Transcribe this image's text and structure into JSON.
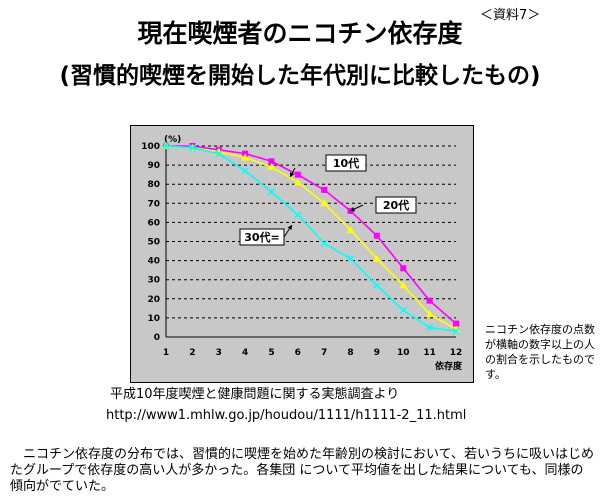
{
  "header": {
    "ref_label": "＜資料7＞",
    "title_line1": "現在喫煙者のニコチン依存度",
    "title_line2": "(習慣的喫煙を開始した年代別に比較したもの)"
  },
  "side_note": "ニコチン依存度の点数が横軸の数字以上の人の割合を示したものです。",
  "source": {
    "text": "平成10年度喫煙と健康問題に関する実態調査より",
    "url": "http://www1.mhlw.go.jp/houdou/1111/h1111-2_11.html"
  },
  "footer_text": "ニコチン依存度の分布では、習慣的に喫煙を始めた年齢別の検討において、若いうちに吸いはじめたグループで依存度の高い人が多かった。各集団 について平均値を出した結果についても、同様の傾向がでていた。",
  "chart_data": {
    "type": "line",
    "ylabel": "(%)",
    "xlabel": "依存度",
    "x": [
      1,
      2,
      3,
      4,
      5,
      6,
      7,
      8,
      9,
      10,
      11,
      12
    ],
    "ylim": [
      0,
      100
    ],
    "yticks": [
      0,
      10,
      20,
      30,
      40,
      50,
      60,
      70,
      80,
      90,
      100
    ],
    "grid": true,
    "series": [
      {
        "name": "10代",
        "color": "#ff00ff",
        "marker": "square",
        "values": [
          100,
          100,
          98,
          96,
          92,
          85,
          77,
          66,
          53,
          36,
          19,
          7
        ]
      },
      {
        "name": "20代",
        "color": "#ffff00",
        "marker": "triangle",
        "values": [
          100,
          99,
          97,
          94,
          89,
          81,
          70,
          56,
          41,
          27,
          12,
          4
        ]
      },
      {
        "name": "30代",
        "color": "#00ffff",
        "marker": "cross",
        "values": [
          100,
          99,
          96,
          87,
          76,
          64,
          49,
          41,
          27,
          14,
          5,
          3
        ]
      }
    ]
  }
}
